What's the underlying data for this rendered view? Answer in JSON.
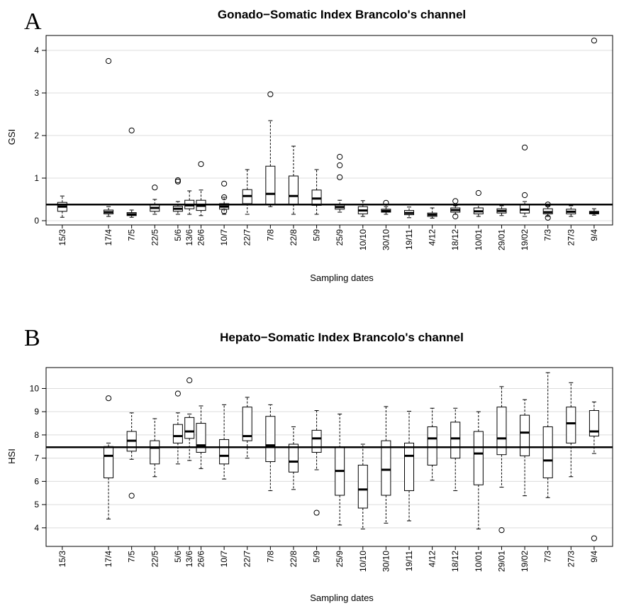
{
  "chart_data": [
    {
      "panel_letter": "A",
      "type": "box",
      "title": "Gonado−Somatic Index Brancolo's channel",
      "xlabel": "Sampling dates",
      "ylabel": "GSI",
      "categories": [
        "15/3",
        "17/4",
        "7/5",
        "22/5",
        "5/6",
        "13/6",
        "26/6",
        "10/7",
        "22/7",
        "7/8",
        "22/8",
        "5/9",
        "25/9",
        "10/10",
        "30/10",
        "19/11",
        "4/12",
        "18/12",
        "10/01",
        "29/01",
        "19/02",
        "7/3",
        "27/3",
        "9/4"
      ],
      "x_positions": [
        1,
        3,
        4,
        5,
        6,
        6.5,
        7,
        8,
        9,
        10,
        11,
        12,
        13,
        14,
        15,
        16,
        17,
        18,
        19,
        20,
        21,
        22,
        23,
        24
      ],
      "ylim": [
        -0.1,
        4.35
      ],
      "yticks": [
        0,
        1,
        2,
        3,
        4
      ],
      "reference_line": 0.38,
      "grid": "horizontal",
      "boxes": [
        {
          "q1": 0.22,
          "median": 0.33,
          "q3": 0.43,
          "wlo": 0.08,
          "whi": 0.58,
          "out": []
        },
        {
          "q1": 0.16,
          "median": 0.2,
          "q3": 0.25,
          "wlo": 0.1,
          "whi": 0.33,
          "out": [
            3.75
          ]
        },
        {
          "q1": 0.12,
          "median": 0.15,
          "q3": 0.19,
          "wlo": 0.08,
          "whi": 0.25,
          "out": [
            2.12
          ]
        },
        {
          "q1": 0.22,
          "median": 0.3,
          "q3": 0.38,
          "wlo": 0.15,
          "whi": 0.5,
          "out": [
            0.78
          ]
        },
        {
          "q1": 0.22,
          "median": 0.28,
          "q3": 0.34,
          "wlo": 0.15,
          "whi": 0.45,
          "out": [
            0.92,
            0.95
          ]
        },
        {
          "q1": 0.28,
          "median": 0.36,
          "q3": 0.48,
          "wlo": 0.15,
          "whi": 0.7,
          "out": []
        },
        {
          "q1": 0.24,
          "median": 0.35,
          "q3": 0.48,
          "wlo": 0.12,
          "whi": 0.72,
          "out": [
            1.33
          ]
        },
        {
          "q1": 0.27,
          "median": 0.33,
          "q3": 0.4,
          "wlo": 0.15,
          "whi": 0.55,
          "out": [
            0.22,
            0.55,
            0.87
          ]
        },
        {
          "q1": 0.4,
          "median": 0.58,
          "q3": 0.73,
          "wlo": 0.15,
          "whi": 1.2,
          "out": []
        },
        {
          "q1": 0.38,
          "median": 0.63,
          "q3": 1.28,
          "wlo": 0.33,
          "whi": 2.35,
          "out": [
            2.97
          ]
        },
        {
          "q1": 0.38,
          "median": 0.58,
          "q3": 1.05,
          "wlo": 0.15,
          "whi": 1.75,
          "out": []
        },
        {
          "q1": 0.36,
          "median": 0.52,
          "q3": 0.72,
          "wlo": 0.15,
          "whi": 1.2,
          "out": []
        },
        {
          "q1": 0.27,
          "median": 0.32,
          "q3": 0.38,
          "wlo": 0.2,
          "whi": 0.48,
          "out": [
            1.02,
            1.3,
            1.5
          ]
        },
        {
          "q1": 0.16,
          "median": 0.24,
          "q3": 0.33,
          "wlo": 0.1,
          "whi": 0.47,
          "out": []
        },
        {
          "q1": 0.2,
          "median": 0.23,
          "q3": 0.27,
          "wlo": 0.15,
          "whi": 0.33,
          "out": [
            0.42
          ]
        },
        {
          "q1": 0.14,
          "median": 0.18,
          "q3": 0.24,
          "wlo": 0.07,
          "whi": 0.32,
          "out": []
        },
        {
          "q1": 0.1,
          "median": 0.14,
          "q3": 0.18,
          "wlo": 0.06,
          "whi": 0.3,
          "out": []
        },
        {
          "q1": 0.2,
          "median": 0.25,
          "q3": 0.3,
          "wlo": 0.15,
          "whi": 0.35,
          "out": [
            0.1,
            0.46
          ]
        },
        {
          "q1": 0.16,
          "median": 0.22,
          "q3": 0.3,
          "wlo": 0.1,
          "whi": 0.38,
          "out": [
            0.65
          ]
        },
        {
          "q1": 0.18,
          "median": 0.23,
          "q3": 0.28,
          "wlo": 0.12,
          "whi": 0.35,
          "out": []
        },
        {
          "q1": 0.18,
          "median": 0.26,
          "q3": 0.38,
          "wlo": 0.1,
          "whi": 0.45,
          "out": [
            0.6,
            1.72
          ]
        },
        {
          "q1": 0.16,
          "median": 0.2,
          "q3": 0.28,
          "wlo": 0.1,
          "whi": 0.35,
          "out": [
            0.07,
            0.38
          ]
        },
        {
          "q1": 0.16,
          "median": 0.21,
          "q3": 0.27,
          "wlo": 0.1,
          "whi": 0.35,
          "out": []
        },
        {
          "q1": 0.16,
          "median": 0.19,
          "q3": 0.22,
          "wlo": 0.13,
          "whi": 0.28,
          "out": [
            4.23
          ]
        }
      ]
    },
    {
      "panel_letter": "B",
      "type": "box",
      "title": "Hepato−Somatic Index Brancolo's channel",
      "xlabel": "Sampling dates",
      "ylabel": "HSI",
      "categories": [
        "15/3",
        "17/4",
        "7/5",
        "22/5",
        "5/6",
        "13/6",
        "26/6",
        "10/7",
        "22/7",
        "7/8",
        "22/8",
        "5/9",
        "25/9",
        "10/10",
        "30/10",
        "19/11",
        "4/12",
        "18/12",
        "10/01",
        "29/01",
        "19/02",
        "7/3",
        "27/3",
        "9/4"
      ],
      "x_positions": [
        1,
        3,
        4,
        5,
        6,
        6.5,
        7,
        8,
        9,
        10,
        11,
        12,
        13,
        14,
        15,
        16,
        17,
        18,
        19,
        20,
        21,
        22,
        23,
        24
      ],
      "ylim": [
        3.2,
        10.9
      ],
      "yticks": [
        4,
        5,
        6,
        7,
        8,
        9,
        10
      ],
      "reference_line": 7.47,
      "grid": "horizontal",
      "boxes": [
        null,
        {
          "q1": 6.15,
          "median": 7.1,
          "q3": 7.5,
          "wlo": 4.38,
          "whi": 7.65,
          "out": [
            9.58
          ]
        },
        {
          "q1": 7.3,
          "median": 7.75,
          "q3": 8.15,
          "wlo": 6.95,
          "whi": 8.95,
          "out": [
            5.38
          ]
        },
        {
          "q1": 6.75,
          "median": 7.45,
          "q3": 7.75,
          "wlo": 6.2,
          "whi": 8.7,
          "out": []
        },
        {
          "q1": 7.65,
          "median": 7.95,
          "q3": 8.45,
          "wlo": 6.75,
          "whi": 8.95,
          "out": [
            9.78
          ]
        },
        {
          "q1": 7.85,
          "median": 8.15,
          "q3": 8.75,
          "wlo": 6.9,
          "whi": 8.9,
          "out": [
            10.35
          ]
        },
        {
          "q1": 7.25,
          "median": 7.55,
          "q3": 8.5,
          "wlo": 6.55,
          "whi": 9.25,
          "out": []
        },
        {
          "q1": 6.75,
          "median": 7.1,
          "q3": 7.8,
          "wlo": 6.1,
          "whi": 9.3,
          "out": []
        },
        {
          "q1": 7.75,
          "median": 7.95,
          "q3": 9.2,
          "wlo": 7.0,
          "whi": 9.62,
          "out": []
        },
        {
          "q1": 6.85,
          "median": 7.55,
          "q3": 8.8,
          "wlo": 5.6,
          "whi": 9.3,
          "out": []
        },
        {
          "q1": 6.4,
          "median": 6.85,
          "q3": 7.6,
          "wlo": 5.65,
          "whi": 8.35,
          "out": []
        },
        {
          "q1": 7.25,
          "median": 7.85,
          "q3": 8.2,
          "wlo": 6.5,
          "whi": 9.05,
          "out": [
            4.65
          ]
        },
        {
          "q1": 5.4,
          "median": 6.45,
          "q3": 7.45,
          "wlo": 4.12,
          "whi": 8.9,
          "out": []
        },
        {
          "q1": 4.85,
          "median": 5.65,
          "q3": 6.7,
          "wlo": 3.95,
          "whi": 7.6,
          "out": []
        },
        {
          "q1": 5.4,
          "median": 6.5,
          "q3": 7.75,
          "wlo": 4.2,
          "whi": 9.22,
          "out": []
        },
        {
          "q1": 5.6,
          "median": 7.1,
          "q3": 7.65,
          "wlo": 4.3,
          "whi": 9.02,
          "out": []
        },
        {
          "q1": 6.7,
          "median": 7.85,
          "q3": 8.35,
          "wlo": 6.05,
          "whi": 9.15,
          "out": []
        },
        {
          "q1": 7.0,
          "median": 7.85,
          "q3": 8.55,
          "wlo": 5.6,
          "whi": 9.15,
          "out": []
        },
        {
          "q1": 5.85,
          "median": 7.2,
          "q3": 8.15,
          "wlo": 3.95,
          "whi": 9.0,
          "out": []
        },
        {
          "q1": 7.15,
          "median": 7.85,
          "q3": 9.2,
          "wlo": 5.75,
          "whi": 10.08,
          "out": [
            3.9
          ]
        },
        {
          "q1": 7.1,
          "median": 8.1,
          "q3": 8.85,
          "wlo": 5.38,
          "whi": 9.52,
          "out": []
        },
        {
          "q1": 6.15,
          "median": 6.9,
          "q3": 8.35,
          "wlo": 5.3,
          "whi": 10.68,
          "out": []
        },
        {
          "q1": 7.65,
          "median": 8.5,
          "q3": 9.2,
          "wlo": 6.2,
          "whi": 10.25,
          "out": []
        },
        {
          "q1": 7.95,
          "median": 8.15,
          "q3": 9.05,
          "wlo": 7.2,
          "whi": 9.42,
          "out": [
            3.55
          ]
        }
      ]
    }
  ]
}
